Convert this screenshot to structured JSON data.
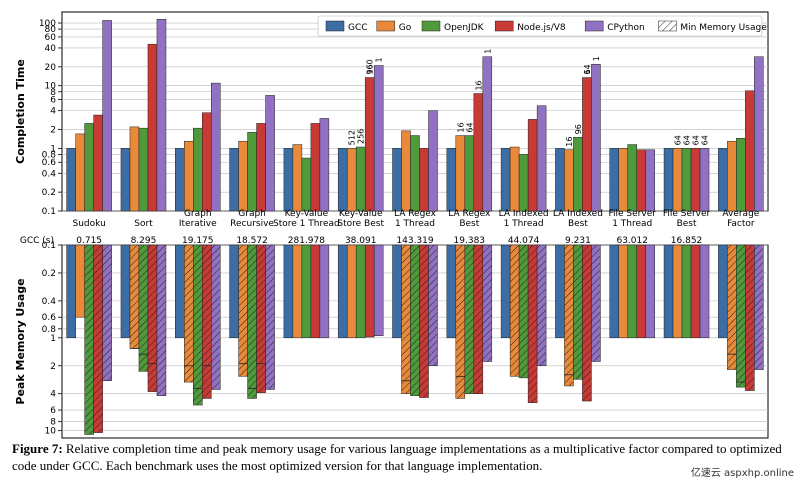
{
  "chart_data": {
    "type": "bar",
    "ylabel_top": "Completion Time",
    "ylabel_bottom": "Peak Memory Usage",
    "y_scale": "log",
    "ylim_top": [
      0.1,
      150
    ],
    "ylim_bottom": [
      0.1,
      12
    ],
    "grid": true,
    "legend_position": "top-right",
    "categories": [
      [
        "Sudoku"
      ],
      [
        "Sort"
      ],
      [
        "Graph",
        "Iterative"
      ],
      [
        "Graph",
        "Recursive"
      ],
      [
        "Key-Value",
        "Store 1 Thread"
      ],
      [
        "Key-Value",
        "Store Best"
      ],
      [
        "LA Regex",
        "1 Thread"
      ],
      [
        "LA Regex",
        "Best"
      ],
      [
        "LA Indexed",
        "1 Thread"
      ],
      [
        "LA Indexed",
        "Best"
      ],
      [
        "File Server",
        "1 Thread"
      ],
      [
        "File Server",
        "Best"
      ],
      [
        "Average",
        "Factor"
      ]
    ],
    "gcc_label": "GCC (s)",
    "gcc_seconds": [
      "0.715",
      "8.295",
      "19.175",
      "18.572",
      "281.978",
      "38.091",
      "143.319",
      "19.383",
      "44.074",
      "9.231",
      "63.012",
      "16.852",
      ""
    ],
    "series": [
      {
        "name": "GCC",
        "color": "#3c6da5",
        "time": [
          1,
          1,
          1,
          1,
          1,
          1,
          1,
          1,
          1,
          1,
          1,
          1,
          1
        ],
        "memory": [
          1,
          1,
          1,
          1,
          1,
          1,
          1,
          1,
          1,
          1,
          1,
          1,
          1
        ],
        "memory_min": [
          null,
          null,
          null,
          null,
          null,
          null,
          null,
          null,
          null,
          null,
          null,
          null,
          null
        ]
      },
      {
        "name": "Go",
        "color": "#e9893a",
        "time": [
          1.7,
          2.2,
          1.3,
          1.3,
          1.15,
          1.0,
          1.9,
          1.6,
          1.05,
          0.95,
          1.0,
          1.0,
          1.3
        ],
        "memory": [
          0.6,
          1.3,
          3.0,
          2.6,
          1.0,
          1.0,
          4.0,
          4.5,
          2.6,
          3.3,
          1.0,
          1.0,
          2.2
        ],
        "memory_min": [
          null,
          1.3,
          2.0,
          1.9,
          null,
          null,
          2.9,
          2.6,
          null,
          2.5,
          null,
          null,
          1.5
        ],
        "labels": [
          "",
          "",
          "",
          "",
          "",
          "512",
          "",
          "16",
          "",
          "16",
          "",
          "64",
          ""
        ]
      },
      {
        "name": "OpenJDK",
        "color": "#4f9a3b",
        "time": [
          2.5,
          2.1,
          2.1,
          1.8,
          0.7,
          1.05,
          1.6,
          1.6,
          0.8,
          1.5,
          1.15,
          1.0,
          1.45
        ],
        "memory": [
          11,
          2.3,
          5.3,
          4.5,
          1.0,
          1.0,
          4.2,
          4.0,
          2.7,
          2.8,
          1.0,
          1.0,
          3.4
        ],
        "memory_min": [
          null,
          1.5,
          3.5,
          3.5,
          null,
          null,
          null,
          null,
          null,
          null,
          null,
          null,
          3.0
        ],
        "labels": [
          "",
          "",
          "",
          "",
          "",
          "256",
          "",
          "64",
          "",
          "96",
          "",
          "64",
          ""
        ]
      },
      {
        "name": "Node.js/V8",
        "color": "#c83a36",
        "time": [
          3.4,
          46,
          3.7,
          2.5,
          2.5,
          13.5,
          1.0,
          7.5,
          2.9,
          13.5,
          0.95,
          1.0,
          8.3
        ],
        "memory": [
          10.5,
          3.8,
          4.5,
          3.9,
          1.0,
          0.98,
          4.4,
          4.0,
          5.0,
          4.8,
          1.0,
          1.0,
          3.7
        ],
        "memory_min": [
          null,
          1.9,
          2.0,
          1.9,
          null,
          null,
          null,
          null,
          null,
          null,
          null,
          null,
          null
        ],
        "labels": [
          "",
          "",
          "",
          "",
          "",
          "160",
          "",
          "16",
          "",
          "64",
          "",
          "64",
          ""
        ]
      },
      {
        "name": "CPython",
        "color": "#9171c2",
        "time": [
          110,
          115,
          11,
          7,
          3.0,
          21,
          4.0,
          29,
          4.8,
          22,
          0.95,
          1.0,
          29
        ],
        "memory": [
          2.9,
          4.2,
          3.6,
          3.6,
          1.0,
          0.95,
          2.0,
          1.8,
          2.0,
          1.8,
          1.0,
          1.0,
          2.2
        ],
        "memory_min": [
          null,
          null,
          null,
          null,
          null,
          null,
          null,
          null,
          null,
          null,
          null,
          null,
          null
        ],
        "labels": [
          "",
          "",
          "",
          "",
          "",
          "",
          "",
          "",
          "",
          "",
          "",
          "64",
          ""
        ]
      }
    ],
    "top_extra_labels": [
      {
        "category": 5,
        "series": 3,
        "text": "96"
      },
      {
        "category": 5,
        "series": 4,
        "text": "1"
      },
      {
        "category": 7,
        "series": 4,
        "text": "1"
      },
      {
        "category": 9,
        "series": 3,
        "text": "1"
      },
      {
        "category": 9,
        "series": 4,
        "text": "1"
      }
    ],
    "ticks_top": [
      "0.1",
      "0.2",
      "0.4",
      "0.6",
      "0.8",
      "1",
      "2",
      "4",
      "6",
      "8",
      "10",
      "20",
      "40",
      "60",
      "80",
      "100"
    ],
    "ticks_bottom": [
      "0.1",
      "0.2",
      "0.4",
      "0.6",
      "0.8",
      "1",
      "2",
      "4",
      "6",
      "8",
      "10"
    ],
    "legend_min_memory": "Min Memory Usage"
  },
  "caption": {
    "label": "Figure 7:",
    "text": " Relative completion time and peak memory usage for various language implementations as a multiplicative factor compared to optimized code under GCC. Each benchmark uses the most optimized version for that language implementation."
  },
  "watermark": "亿速云 aspxhp.online"
}
